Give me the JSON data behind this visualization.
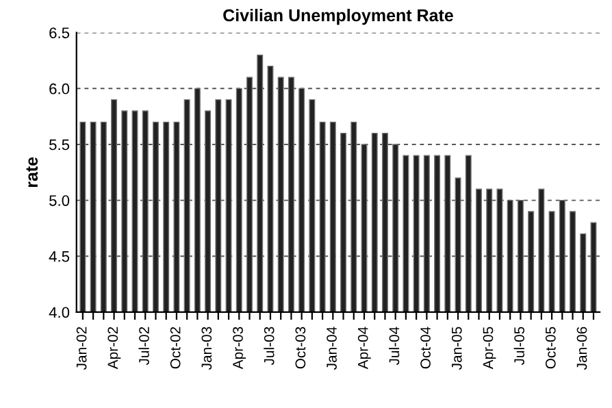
{
  "chart_data": {
    "type": "bar",
    "title": "Civilian Unemployment Rate",
    "ylabel": "rate",
    "categories": [
      "Jan-02",
      null,
      null,
      "Apr-02",
      null,
      null,
      "Jul-02",
      null,
      null,
      "Oct-02",
      null,
      null,
      "Jan-03",
      null,
      null,
      "Apr-03",
      null,
      null,
      "Jul-03",
      null,
      null,
      "Oct-03",
      null,
      null,
      "Jan-04",
      null,
      null,
      "Apr-04",
      null,
      null,
      "Jul-04",
      null,
      null,
      "Oct-04",
      null,
      null,
      "Jan-05",
      null,
      null,
      "Apr-05",
      null,
      null,
      "Jul-05",
      null,
      null,
      "Oct-05",
      null,
      null,
      "Jan-06",
      null
    ],
    "values": [
      5.7,
      5.7,
      5.7,
      5.9,
      5.8,
      5.8,
      5.8,
      5.7,
      5.7,
      5.7,
      5.9,
      6.0,
      5.8,
      5.9,
      5.9,
      6.0,
      6.1,
      6.3,
      6.2,
      6.1,
      6.1,
      6.0,
      5.9,
      5.7,
      5.7,
      5.6,
      5.7,
      5.5,
      5.6,
      5.6,
      5.5,
      5.4,
      5.4,
      5.4,
      5.4,
      5.4,
      5.2,
      5.4,
      5.1,
      5.1,
      5.1,
      5.0,
      5.0,
      4.9,
      5.1,
      4.9,
      5.0,
      4.9,
      4.7,
      4.8
    ],
    "color": "#222222",
    "ylim": [
      4.0,
      6.5
    ],
    "yticks": [
      {
        "value": 4.0,
        "label": "4.0"
      },
      {
        "value": 4.5,
        "label": "4.5"
      },
      {
        "value": 5.0,
        "label": "5.0"
      },
      {
        "value": 5.5,
        "label": "5.5"
      },
      {
        "value": 6.0,
        "label": "6.0"
      },
      {
        "value": 6.5,
        "label": "6.5"
      }
    ],
    "grid": "y",
    "legend": false
  }
}
